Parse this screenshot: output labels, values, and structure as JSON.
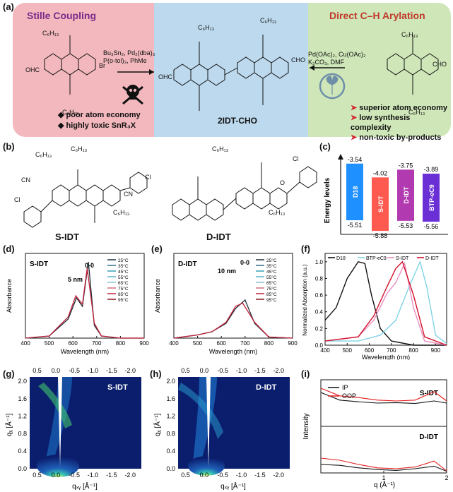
{
  "panel_labels": {
    "a": "(a)",
    "b": "(b)",
    "c": "(c)",
    "d": "(d)",
    "e": "(e)",
    "f": "(f)",
    "g": "(g)",
    "h": "(h)",
    "i": "(i)"
  },
  "panel_a": {
    "left_title": "Stille Coupling",
    "right_title": "Direct C–H Arylation",
    "center_label": "2IDT-CHO",
    "left_conditions": [
      "Bu₃Sn₂, Pd₂(dba)₃",
      "P(o-tol)₃, PhMe"
    ],
    "right_conditions": [
      "Pd(OAc)₂, Cu(OAc)₂",
      "K₂CO₃, DMF"
    ],
    "left_bullets": [
      "poor atom economy",
      "highly toxic SnR₃X"
    ],
    "right_bullets": [
      "superior atom economy",
      "low synthesis complexity",
      "non-toxic by-products"
    ],
    "chain_label": "C₆H₁₃",
    "group_cho": "CHO",
    "group_ohc": "OHC",
    "group_br": "Br",
    "colors": {
      "left": "#f2b8bd",
      "center": "#bcd9ee",
      "right": "#cfe6b8",
      "left_title": "#7a2a8a",
      "right_title": "#c0392b",
      "bullet_red": "#d3262f"
    }
  },
  "panel_b": {
    "mol1": "S-IDT",
    "mol2": "D-IDT",
    "chain_label": "C₆H₁₃",
    "atom_cn": "CN",
    "atom_cl": "Cl",
    "atom_o": "O"
  },
  "panel_c": {
    "ylabel": "Energy levels",
    "bars": [
      {
        "name": "D18",
        "lumo": "-3.54",
        "homo": "-5.51",
        "color": "#1e90ff"
      },
      {
        "name": "S-IDT",
        "lumo": "-4.02",
        "homo": "-5.88",
        "color": "#ff5a4f"
      },
      {
        "name": "D-IDT",
        "lumo": "-3.75",
        "homo": "-5.53",
        "color": "#b23ab0"
      },
      {
        "name": "BTP-eC9",
        "lumo": "-3.89",
        "homo": "-5.56",
        "color": "#6b2fd6"
      }
    ]
  },
  "panel_d": {
    "title": "S-IDT",
    "annot_peak": "0-0",
    "annot_shift": "5 nm",
    "xlabel": "Wavelength (nm)",
    "ylabel": "Absorbance",
    "xticks": [
      "400",
      "500",
      "600",
      "700",
      "800",
      "900"
    ],
    "legend": [
      "25°C",
      "35°C",
      "45°C",
      "55°C",
      "65°C",
      "75°C",
      "85°C",
      "95°C"
    ]
  },
  "panel_e": {
    "title": "D-IDT",
    "annot_peak": "0-0",
    "annot_shift": "10 nm",
    "xlabel": "Wavelength (nm)",
    "ylabel": "Absorbance",
    "xticks": [
      "400",
      "500",
      "600",
      "700",
      "800",
      "900"
    ],
    "legend": [
      "25°C",
      "35°C",
      "45°C",
      "55°C",
      "65°C",
      "75°C",
      "85°C",
      "95°C"
    ]
  },
  "panel_f": {
    "xlabel": "Wavelength (nm)",
    "ylabel": "Normalized Absorption (a.u.)",
    "xticks": [
      "400",
      "500",
      "600",
      "700",
      "800",
      "900"
    ],
    "yticks": [
      "0.0",
      "0.2",
      "0.4",
      "0.6",
      "0.8",
      "1.0"
    ],
    "legend": [
      {
        "name": "D18",
        "color": "#111111"
      },
      {
        "name": "BTP-eC9",
        "color": "#7fd3e6"
      },
      {
        "name": "S-IDT",
        "color": "#e88fbf"
      },
      {
        "name": "D-IDT",
        "color": "#d0102a"
      }
    ]
  },
  "panel_g": {
    "label": "S-IDT",
    "top_ticks": [
      "0.5",
      "0.0",
      "-0.5",
      "-1.0",
      "-1.5",
      "-2.0"
    ],
    "bottom_ticks": [
      "0.5",
      "0.0",
      "-0.5",
      "-1.0",
      "-1.5",
      "-2.0"
    ],
    "left_ticks": [
      "0.0",
      "0.4",
      "0.8",
      "1.2",
      "1.6",
      "2.0"
    ],
    "xlabel": "qₓᵧ [Å⁻¹]",
    "ylabel": "qᵪ [Å⁻¹]"
  },
  "panel_h": {
    "label": "D-IDT",
    "top_ticks": [
      "0.5",
      "0.0",
      "-0.5",
      "-1.0",
      "-1.5",
      "-2.0"
    ],
    "bottom_ticks": [
      "0.5",
      "0.0",
      "-0.5",
      "-1.0",
      "-1.5",
      "-2.0"
    ],
    "left_ticks": [
      "0.0",
      "0.4",
      "0.8",
      "1.2",
      "1.6",
      "2.0"
    ],
    "xlabel": "qₓᵧ [Å⁻¹]",
    "ylabel": "qᵪ [Å⁻¹]"
  },
  "panel_i": {
    "legend": [
      {
        "name": "IP",
        "color": "#111111"
      },
      {
        "name": "OOP",
        "color": "#e21b1b"
      }
    ],
    "label_top": "S-IDT",
    "label_bottom": "D-IDT",
    "xlabel": "q (Å⁻¹)",
    "ylabel": "Intensity",
    "xticks": [
      "1",
      "2"
    ]
  },
  "chart_data": [
    {
      "type": "line",
      "panel": "d",
      "xlim": [
        400,
        900
      ],
      "series": [
        {
          "name": "25°C",
          "x": [
            400,
            500,
            580,
            615,
            640,
            665,
            690,
            720,
            800,
            900
          ],
          "y": [
            0.0,
            0.02,
            0.18,
            0.38,
            0.3,
            0.72,
            0.12,
            0.02,
            0.0,
            0.0
          ]
        },
        {
          "name": "95°C",
          "x": [
            400,
            500,
            580,
            612,
            640,
            660,
            690,
            720,
            800,
            900
          ],
          "y": [
            0.0,
            0.02,
            0.2,
            0.4,
            0.32,
            0.66,
            0.14,
            0.02,
            0.0,
            0.0
          ]
        }
      ]
    },
    {
      "type": "line",
      "panel": "e",
      "xlim": [
        400,
        900
      ],
      "series": [
        {
          "name": "25°C",
          "x": [
            400,
            500,
            560,
            620,
            660,
            700,
            740,
            800,
            900
          ],
          "y": [
            0.0,
            0.03,
            0.06,
            0.14,
            0.28,
            0.36,
            0.14,
            0.01,
            0.0
          ]
        },
        {
          "name": "95°C",
          "x": [
            400,
            500,
            560,
            620,
            660,
            690,
            740,
            800,
            900
          ],
          "y": [
            0.0,
            0.03,
            0.06,
            0.15,
            0.3,
            0.33,
            0.15,
            0.01,
            0.0
          ]
        }
      ]
    },
    {
      "type": "line",
      "panel": "f",
      "xlim": [
        400,
        950
      ],
      "ylim": [
        0,
        1.1
      ],
      "series": [
        {
          "name": "D18",
          "x": [
            400,
            450,
            500,
            550,
            580,
            610,
            650,
            700,
            800,
            950
          ],
          "y": [
            0.3,
            0.45,
            0.8,
            1.0,
            0.98,
            0.6,
            0.2,
            0.05,
            0.0,
            0.0
          ]
        },
        {
          "name": "BTP-eC9",
          "x": [
            400,
            550,
            650,
            720,
            780,
            830,
            860,
            900,
            950
          ],
          "y": [
            0.05,
            0.05,
            0.12,
            0.3,
            0.7,
            1.0,
            0.7,
            0.12,
            0.02
          ]
        },
        {
          "name": "S-IDT",
          "x": [
            400,
            550,
            620,
            680,
            720,
            760,
            800,
            850,
            950
          ],
          "y": [
            0.05,
            0.1,
            0.3,
            0.62,
            0.75,
            0.98,
            0.45,
            0.05,
            0.0
          ]
        },
        {
          "name": "D-IDT",
          "x": [
            400,
            550,
            620,
            680,
            720,
            750,
            800,
            850,
            950
          ],
          "y": [
            0.05,
            0.1,
            0.35,
            0.7,
            0.92,
            1.0,
            0.6,
            0.1,
            0.0
          ]
        }
      ]
    },
    {
      "type": "line",
      "panel": "i",
      "xlim": [
        0,
        2
      ],
      "series": [
        {
          "name": "IP S-IDT",
          "x": [
            0.0,
            0.3,
            0.6,
            0.9,
            1.2,
            1.5,
            1.8,
            2.0
          ],
          "y": [
            0.8,
            0.62,
            0.58,
            0.55,
            0.56,
            0.54,
            0.6,
            0.55
          ]
        },
        {
          "name": "OOP S-IDT",
          "x": [
            0.0,
            0.3,
            0.6,
            0.9,
            1.2,
            1.5,
            1.8,
            2.0
          ],
          "y": [
            0.9,
            0.72,
            0.68,
            0.62,
            0.6,
            0.62,
            0.82,
            0.6
          ]
        },
        {
          "name": "IP D-IDT",
          "x": [
            0.0,
            0.3,
            0.6,
            0.9,
            1.2,
            1.5,
            1.8,
            2.0
          ],
          "y": [
            0.2,
            0.18,
            0.12,
            0.08,
            0.06,
            0.1,
            0.16,
            0.04
          ]
        },
        {
          "name": "OOP D-IDT",
          "x": [
            0.0,
            0.3,
            0.6,
            0.9,
            1.2,
            1.5,
            1.8,
            2.0
          ],
          "y": [
            0.35,
            0.3,
            0.2,
            0.12,
            0.1,
            0.14,
            0.28,
            0.05
          ]
        }
      ]
    }
  ]
}
